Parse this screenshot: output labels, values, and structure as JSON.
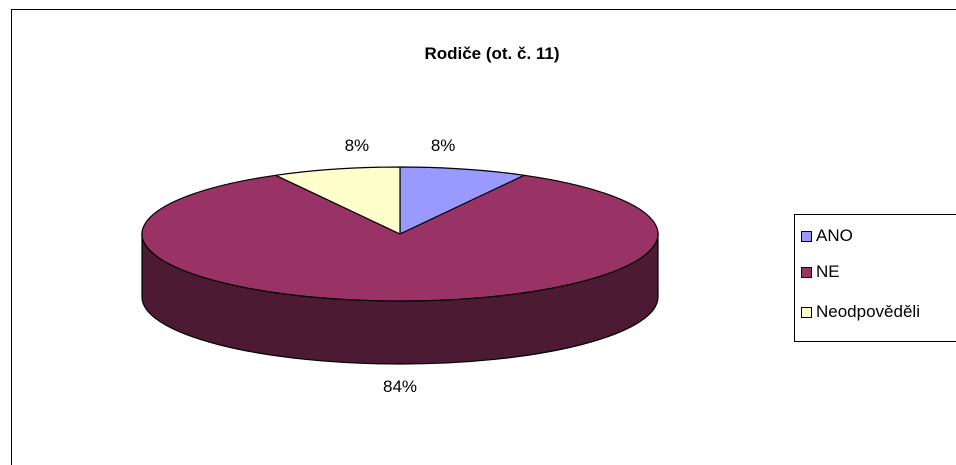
{
  "chart_data": {
    "type": "pie",
    "title": "Rodiče (ot. č. 11)",
    "categories": [
      "ANO",
      "NE",
      "Neodpověděli"
    ],
    "values": [
      8,
      84,
      8
    ],
    "value_labels": [
      "8%",
      "84%",
      "8%"
    ],
    "colors": [
      "#9999FF",
      "#993366",
      "#FFFFCC"
    ],
    "side_colors": [
      "#4D4D80",
      "#4D1A33",
      "#808066"
    ],
    "legend_position": "right",
    "3d": true
  }
}
